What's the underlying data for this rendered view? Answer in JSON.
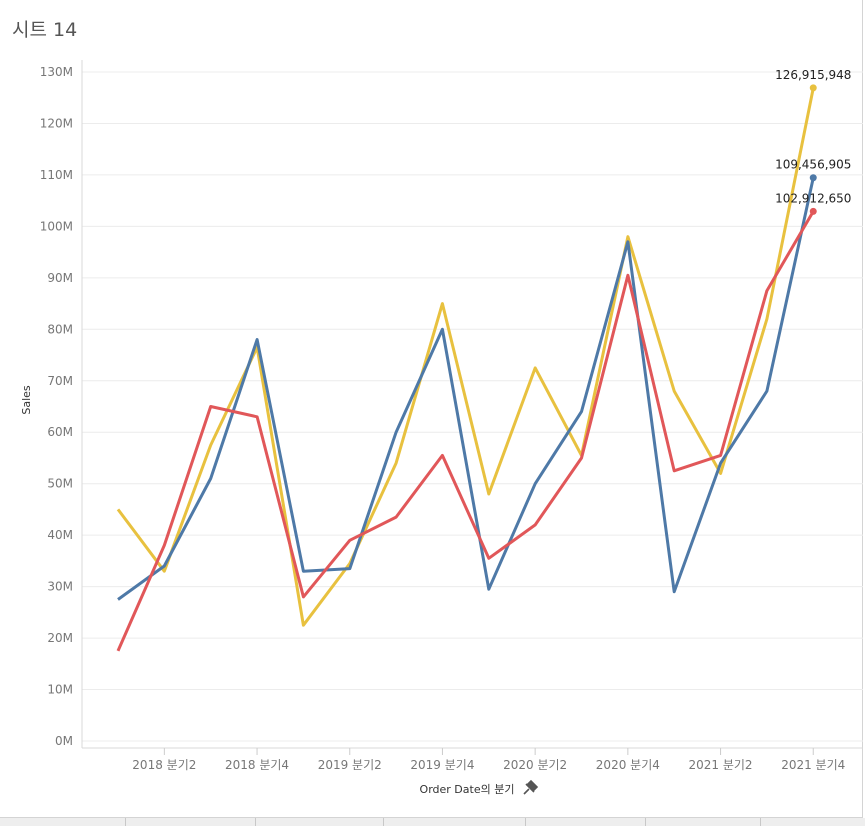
{
  "sheet": {
    "title": "시트 14"
  },
  "chart_data": {
    "type": "line",
    "xlabel": "Order Date의 분기",
    "ylabel": "Sales",
    "ylim": [
      0,
      130000000
    ],
    "y_ticks": [
      {
        "value": 0,
        "label": "0M"
      },
      {
        "value": 10000000,
        "label": "10M"
      },
      {
        "value": 20000000,
        "label": "20M"
      },
      {
        "value": 30000000,
        "label": "30M"
      },
      {
        "value": 40000000,
        "label": "40M"
      },
      {
        "value": 50000000,
        "label": "50M"
      },
      {
        "value": 60000000,
        "label": "60M"
      },
      {
        "value": 70000000,
        "label": "70M"
      },
      {
        "value": 80000000,
        "label": "80M"
      },
      {
        "value": 90000000,
        "label": "90M"
      },
      {
        "value": 100000000,
        "label": "100M"
      },
      {
        "value": 110000000,
        "label": "110M"
      },
      {
        "value": 120000000,
        "label": "120M"
      },
      {
        "value": 130000000,
        "label": "130M"
      }
    ],
    "categories": [
      "2018 분기1",
      "2018 분기2",
      "2018 분기3",
      "2018 분기4",
      "2019 분기1",
      "2019 분기2",
      "2019 분기3",
      "2019 분기4",
      "2020 분기1",
      "2020 분기2",
      "2020 분기3",
      "2020 분기4",
      "2021 분기1",
      "2021 분기2",
      "2021 분기3",
      "2021 분기4"
    ],
    "x_tick_labels": [
      "2018 분기2",
      "2018 분기4",
      "2019 분기2",
      "2019 분기4",
      "2020 분기2",
      "2020 분기4",
      "2021 분기2",
      "2021 분기4"
    ],
    "x_tick_indices": [
      1,
      3,
      5,
      7,
      9,
      11,
      13,
      15
    ],
    "grid": true,
    "legend": "none",
    "series": [
      {
        "color": "#e8c13f",
        "values": [
          45000000,
          33000000,
          57500000,
          76500000,
          22500000,
          34500000,
          54000000,
          85000000,
          48000000,
          72500000,
          55500000,
          98000000,
          68000000,
          52000000,
          82000000,
          126915948
        ],
        "end_label": "126,915,948"
      },
      {
        "color": "#4e79a7",
        "values": [
          27500000,
          34000000,
          51000000,
          78000000,
          33000000,
          33500000,
          60000000,
          80000000,
          29500000,
          50000000,
          64000000,
          97000000,
          29000000,
          54000000,
          68000000,
          109456905
        ],
        "end_label": "109,456,905"
      },
      {
        "color": "#e15759",
        "values": [
          17500000,
          38000000,
          65000000,
          63000000,
          28000000,
          39000000,
          43500000,
          55500000,
          35500000,
          42000000,
          55000000,
          90500000,
          52500000,
          55500000,
          87500000,
          102912650
        ],
        "end_label": "102,912,650"
      }
    ]
  }
}
